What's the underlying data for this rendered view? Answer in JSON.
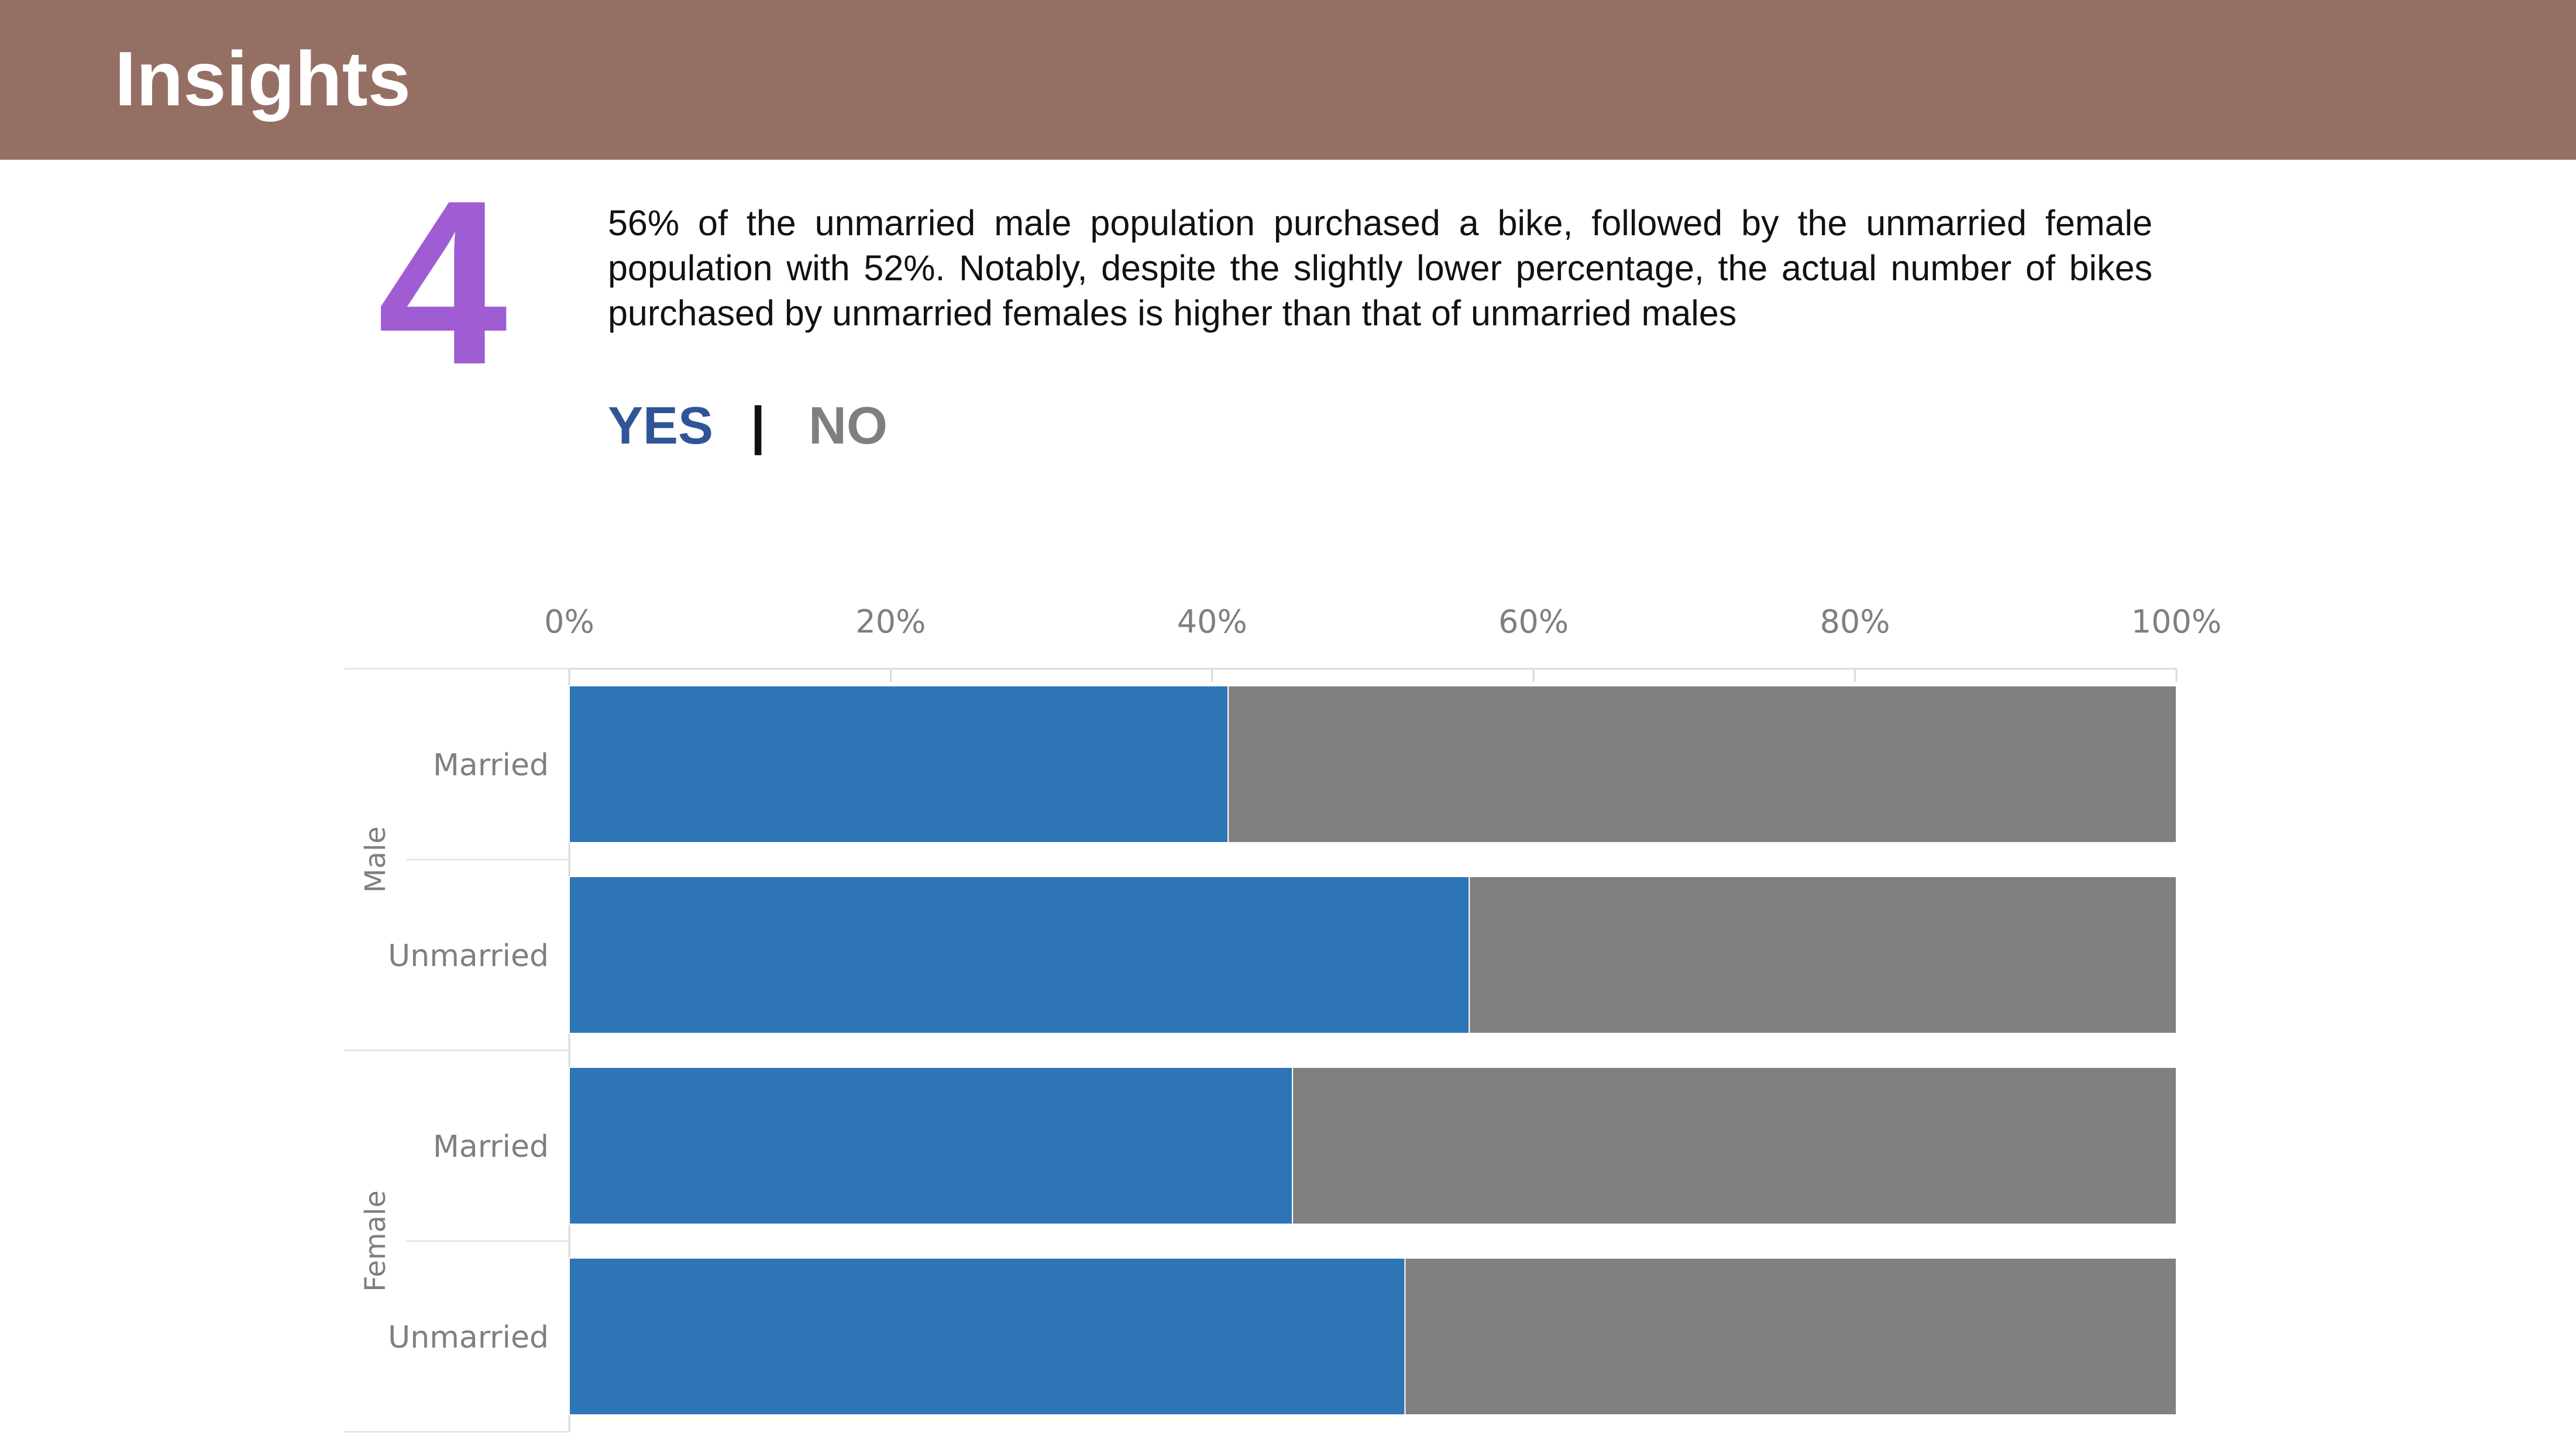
{
  "header": {
    "title": "Insights"
  },
  "insight": {
    "number": "4",
    "text": "56% of the unmarried male population purchased a bike, followed by the unmarried female population with 52%. Notably, despite the slightly lower percentage, the actual number of bikes purchased by unmarried females is higher than that of unmarried males",
    "answer_yes": "YES",
    "answer_separator": "|",
    "answer_no": "NO"
  },
  "colors": {
    "header_bg": "#966F64",
    "number": "#A05CD2",
    "yes_text": "#2F5597",
    "no_text": "#7F7F7F",
    "bar_yes": "#2E75B6",
    "bar_no": "#808080"
  },
  "chart_data": {
    "type": "bar",
    "orientation": "horizontal",
    "stacked": "100%",
    "groups": [
      {
        "label": "Male",
        "categories": [
          "Married",
          "Unmarried"
        ]
      },
      {
        "label": "Female",
        "categories": [
          "Married",
          "Unmarried"
        ]
      }
    ],
    "series": [
      {
        "values": [
          41,
          56,
          45,
          52
        ],
        "color": "#2E75B6"
      },
      {
        "values": [
          59,
          44,
          55,
          48
        ],
        "color": "#808080"
      }
    ],
    "x_ticks": [
      "0%",
      "20%",
      "40%",
      "60%",
      "80%",
      "100%"
    ],
    "xlim": [
      0,
      100
    ],
    "axis_position": "top",
    "legend": "none"
  }
}
